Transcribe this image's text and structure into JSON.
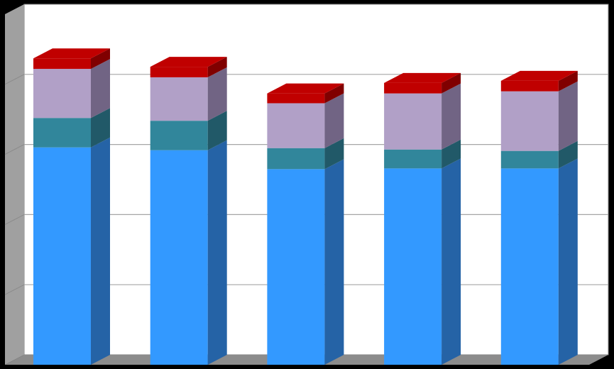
{
  "chart_data": {
    "type": "bar",
    "stacked": true,
    "three_d": true,
    "categories": [
      "",
      "",
      "",
      "",
      ""
    ],
    "series": [
      {
        "values": [
          310,
          306,
          279,
          280,
          280
        ]
      },
      {
        "values": [
          42,
          42,
          30,
          27,
          25
        ]
      },
      {
        "values": [
          70,
          62,
          64,
          80,
          85
        ]
      },
      {
        "values": [
          15,
          15,
          14,
          15,
          15
        ]
      }
    ],
    "ylim": [
      0,
      500
    ],
    "grid": true,
    "legend": "none",
    "title": "",
    "xlabel": "",
    "ylabel": ""
  },
  "colors": {
    "background": "#000000",
    "plot_area": "#ffffff",
    "gridline": "#a6a6a6",
    "side_wall": "#a0a0a0",
    "floor": "#8c8c8c",
    "series_front": [
      "#3399ff",
      "#31869b",
      "#b1a0c7",
      "#c00000"
    ],
    "series_side": [
      "#2563a6",
      "#215968",
      "#716484",
      "#800000"
    ]
  }
}
